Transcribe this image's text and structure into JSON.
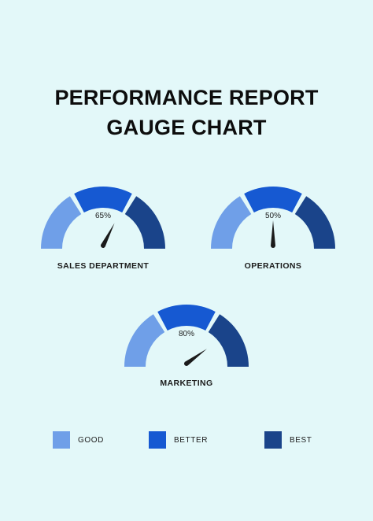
{
  "title_line1": "PERFORMANCE REPORT",
  "title_line2": "GAUGE CHART",
  "colors": {
    "good": "#6f9fe8",
    "better": "#1659d2",
    "best": "#1a448a",
    "needle": "#1b1b1b",
    "background": "#e3f8f9"
  },
  "chart_data": {
    "type": "gauge",
    "range": [
      0,
      100
    ],
    "bands": [
      {
        "name": "GOOD",
        "color": "#6f9fe8"
      },
      {
        "name": "BETTER",
        "color": "#1659d2"
      },
      {
        "name": "BEST",
        "color": "#1a448a"
      }
    ],
    "gauges": [
      {
        "label": "SALES DEPARTMENT",
        "value": 65,
        "value_label": "65%"
      },
      {
        "label": "OPERATIONS",
        "value": 50,
        "value_label": "50%"
      },
      {
        "label": "MARKETING",
        "value": 80,
        "value_label": "80%"
      }
    ]
  },
  "legend": [
    {
      "label": "GOOD",
      "color": "#6f9fe8"
    },
    {
      "label": "BETTER",
      "color": "#1659d2"
    },
    {
      "label": "BEST",
      "color": "#1a448a"
    }
  ]
}
